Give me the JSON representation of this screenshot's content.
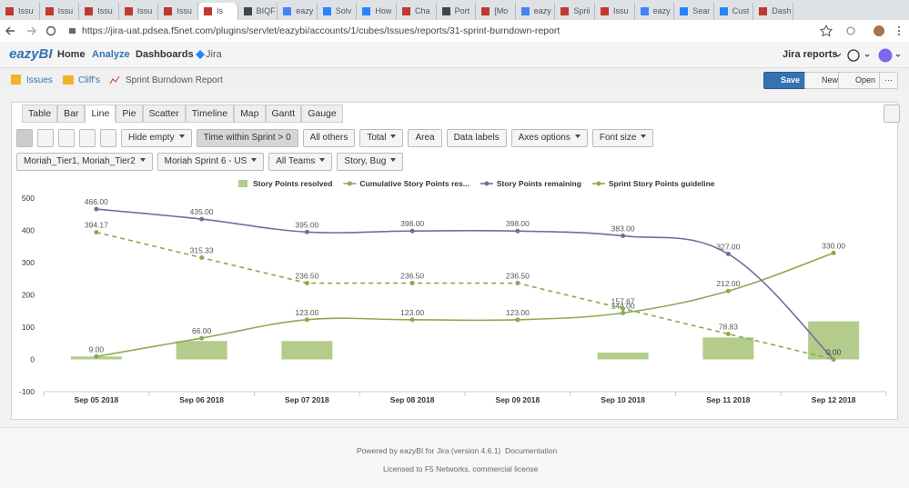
{
  "browser": {
    "tabs": [
      "Issu",
      "Issu",
      "Issu",
      "Issu",
      "Issu",
      "Is",
      "BIQF",
      "eazy",
      "Solv",
      "How",
      "Cha",
      "Port",
      "[Mo",
      "eazy",
      "Sprii",
      "Issu",
      "eazy",
      "Sear",
      "Cust",
      "Dash"
    ],
    "url": "https://jira-uat.pdsea.f5net.com/plugins/servlet/eazybi/accounts/1/cubes/Issues/reports/31-sprint-burndown-report"
  },
  "app_nav": {
    "logo": "eazyBI",
    "items": [
      "Home",
      "Analyze",
      "Dashboards",
      "Jira"
    ],
    "reports_menu": "Jira reports"
  },
  "breadcrumb": [
    "Issues",
    "Cliff's",
    "Sprint Burndown Report"
  ],
  "actions": [
    "Save",
    "New",
    "Open"
  ],
  "view_tabs": [
    "Table",
    "Bar",
    "Line",
    "Pie",
    "Scatter",
    "Timeline",
    "Map",
    "Gantt",
    "Gauge"
  ],
  "toolbar": [
    "Hide empty",
    "Time within Sprint > 0",
    "All others",
    "Total",
    "Area",
    "Data labels",
    "Axes options",
    "Font size"
  ],
  "filters": [
    "Moriah_Tier1, Moriah_Tier2",
    "Moriah Sprint 6 - US",
    "All Teams",
    "Story, Bug"
  ],
  "chart_data": {
    "type": "line",
    "categories": [
      "Sep 05 2018",
      "Sep 06 2018",
      "Sep 07 2018",
      "Sep 08 2018",
      "Sep 09 2018",
      "Sep 10 2018",
      "Sep 11 2018",
      "Sep 12 2018"
    ],
    "series": [
      {
        "name": "Story Points resolved",
        "type": "bar",
        "color": "#b3cc8c",
        "values": [
          9,
          57,
          57,
          null,
          null,
          21,
          68,
          118
        ]
      },
      {
        "name": "Cumulative Story Points res...",
        "type": "line",
        "color": "#8aab4f",
        "values": [
          9,
          66,
          123,
          123,
          123,
          144,
          212,
          330
        ],
        "value_labels": [
          "9.00",
          "66.00",
          "123.00",
          "123.00",
          "123.00",
          "144.00",
          "212.00",
          "330.00"
        ]
      },
      {
        "name": "Story Points remaining",
        "type": "line",
        "color": "#7a6a9c",
        "values": [
          466,
          435,
          395,
          398,
          398,
          383,
          327,
          0
        ],
        "value_labels": [
          "466.00",
          "435.00",
          "395.00",
          "398.00",
          "398.00",
          "383.00",
          "327.00",
          "0.00"
        ]
      },
      {
        "name": "Sprint Story Points guideline",
        "type": "line",
        "color": "#8aab4f",
        "dashed": true,
        "values": [
          394.17,
          315.33,
          236.5,
          236.5,
          236.5,
          157.67,
          78.83,
          0
        ],
        "value_labels": [
          "394.17",
          "315.33",
          "236.50",
          "236.50",
          "236.50",
          "157.67",
          "78.83",
          "0.00"
        ]
      }
    ],
    "ylim": [
      -100,
      500
    ],
    "yticks": [
      -100,
      0,
      100,
      200,
      300,
      400,
      500
    ],
    "grid": false
  },
  "footer": {
    "powered": "Powered by eazyBI for Jira (version 4.6.1)",
    "link": "Documentation",
    "license": "Licensed to F5 Networks, commercial license"
  }
}
